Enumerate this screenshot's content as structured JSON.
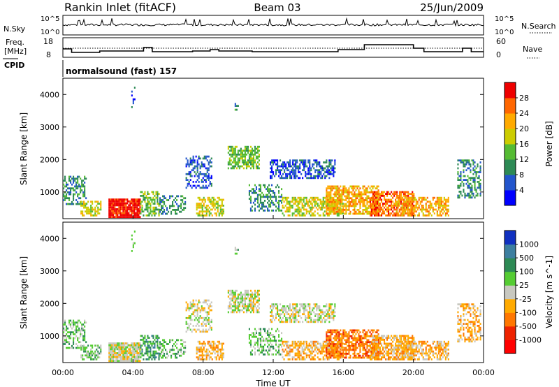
{
  "header": {
    "station": "Rankin Inlet (fitACF)",
    "beam": "Beam 03",
    "date": "25/Jun/2009"
  },
  "status_panels": {
    "nsky": {
      "label": "N.Sky",
      "ticks": [
        "10^5",
        "10^0"
      ],
      "right_ticks": [
        "10^5",
        "10^0"
      ],
      "right_label": "N.Search"
    },
    "freq": {
      "label_line1": "Freq.",
      "label_line2": "[MHz]",
      "ticks": [
        "18",
        "8"
      ],
      "right_ticks": [
        "60",
        "0"
      ],
      "right_label": "Nave"
    },
    "cpid": {
      "label": "CPID",
      "text": "normalsound (fast) 157"
    }
  },
  "chart_data": [
    {
      "type": "heatmap",
      "name": "power-panel",
      "ylabel": "Slant Range [km]",
      "xlabel": "",
      "ylim": [
        180,
        4500
      ],
      "yticks": [
        "1000",
        "2000",
        "3000",
        "4000"
      ],
      "colorbar": {
        "label": "Power [dB]",
        "ticks": [
          "4",
          "8",
          "12",
          "16",
          "20",
          "24",
          "28"
        ],
        "colors": [
          "#0000ff",
          "#2255cc",
          "#2d8a55",
          "#55bb33",
          "#cccc00",
          "#ffaa00",
          "#ff6600",
          "#ee0000"
        ]
      }
    },
    {
      "type": "heatmap",
      "name": "velocity-panel",
      "ylabel": "Slant Range [km]",
      "xlabel": "Time UT",
      "ylim": [
        180,
        4500
      ],
      "yticks": [
        "1000",
        "2000",
        "3000",
        "4000"
      ],
      "xticks": [
        "00:00",
        "04:00",
        "08:00",
        "12:00",
        "16:00",
        "20:00",
        "00:00"
      ],
      "colorbar": {
        "label": "Velocity [m s^-1]",
        "ticks": [
          "1000",
          "500",
          "100",
          "25",
          "-25",
          "-100",
          "-500",
          "-1000"
        ],
        "colors": [
          "#1030c0",
          "#3d7fa0",
          "#2d8a55",
          "#55cc33",
          "#c8c8c0",
          "#ffaa00",
          "#ff7700",
          "#ee2200",
          "#ff0000"
        ]
      }
    }
  ]
}
